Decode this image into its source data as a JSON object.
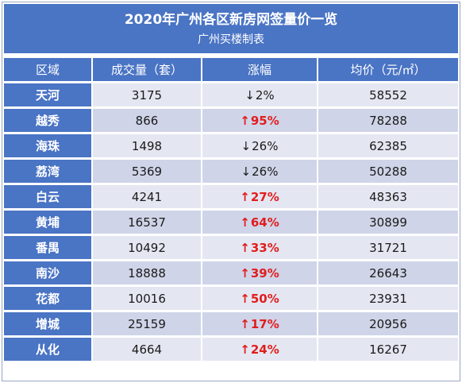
{
  "title": "2020年广州各区新房网签量价一览",
  "subtitle": "广州买楼制表",
  "headers": [
    "区域",
    "成交量（套）",
    "涨幅",
    "均价（元/㎡）"
  ],
  "colors": {
    "header_bg": "#4a74c4",
    "row_light": "#e4e7f1",
    "row_dark": "#cfd4e8",
    "up": "#e11d1d"
  },
  "rows": [
    {
      "region": "天河",
      "volume": "3175",
      "change": "2%",
      "direction": "down",
      "price": "58552"
    },
    {
      "region": "越秀",
      "volume": "866",
      "change": "95%",
      "direction": "up",
      "price": "78288"
    },
    {
      "region": "海珠",
      "volume": "1498",
      "change": "26%",
      "direction": "down",
      "price": "62385"
    },
    {
      "region": "荔湾",
      "volume": "5369",
      "change": "26%",
      "direction": "down",
      "price": "50288"
    },
    {
      "region": "白云",
      "volume": "4241",
      "change": "27%",
      "direction": "up",
      "price": "48363"
    },
    {
      "region": "黄埔",
      "volume": "16537",
      "change": "64%",
      "direction": "up",
      "price": "30899"
    },
    {
      "region": "番禺",
      "volume": "10492",
      "change": "33%",
      "direction": "up",
      "price": "31721"
    },
    {
      "region": "南沙",
      "volume": "18888",
      "change": "39%",
      "direction": "up",
      "price": "26643"
    },
    {
      "region": "花都",
      "volume": "10016",
      "change": "50%",
      "direction": "up",
      "price": "23931"
    },
    {
      "region": "增城",
      "volume": "25159",
      "change": "17%",
      "direction": "up",
      "price": "20956"
    },
    {
      "region": "从化",
      "volume": "4664",
      "change": "24%",
      "direction": "up",
      "price": "16267"
    }
  ]
}
